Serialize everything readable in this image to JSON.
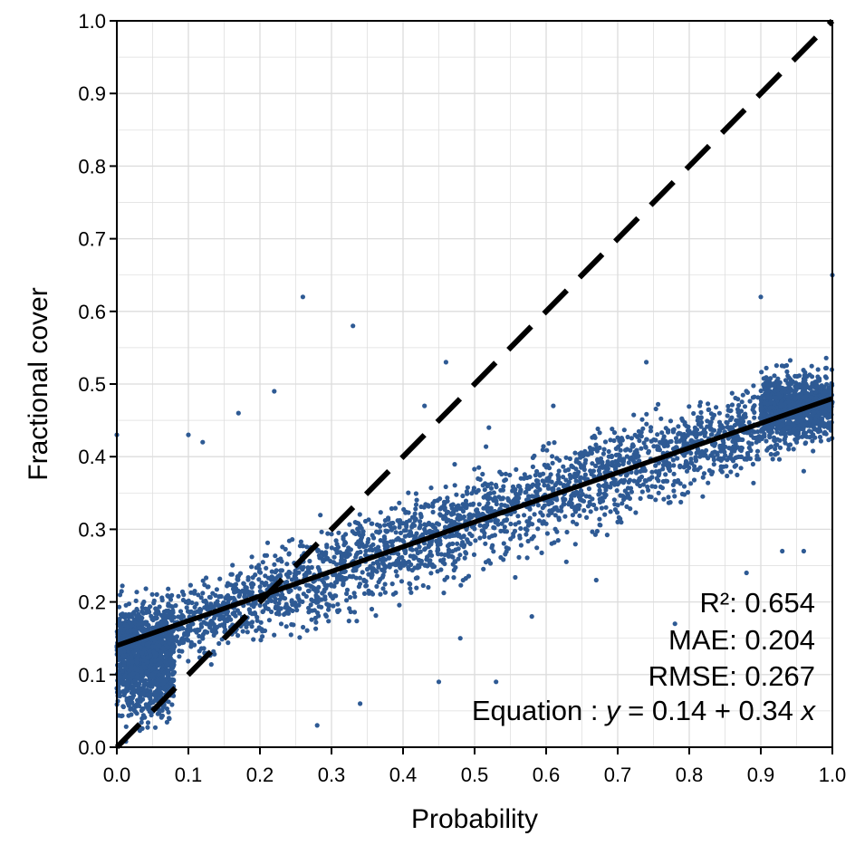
{
  "chart_data": {
    "type": "scatter",
    "title": "",
    "xlabel": "Probability",
    "ylabel": "Fractional cover",
    "xlim": [
      0.0,
      1.0
    ],
    "ylim": [
      0.0,
      1.0
    ],
    "xticks": [
      "0.0",
      "0.1",
      "0.2",
      "0.3",
      "0.4",
      "0.5",
      "0.6",
      "0.7",
      "0.8",
      "0.9",
      "1.0"
    ],
    "yticks": [
      "0.0",
      "0.1",
      "0.2",
      "0.3",
      "0.4",
      "0.5",
      "0.6",
      "0.7",
      "0.8",
      "0.9",
      "1.0"
    ],
    "grid": true,
    "point_color": "#2E5A94",
    "reference_line": {
      "from": [
        0.0,
        0.0
      ],
      "to": [
        1.0,
        1.0
      ],
      "style": "dashed",
      "color": "#000000"
    },
    "fit_line": {
      "intercept": 0.14,
      "slope": 0.34,
      "style": "solid",
      "color": "#000000"
    },
    "annotations": {
      "r2": "R²: 0.654",
      "mae": "MAE: 0.204",
      "rmse": "RMSE: 0.267",
      "equation_prefix": "Equation",
      "equation_colon": " : ",
      "equation_y": "y",
      "equation_mid": " = 0.14 + 0.34 ",
      "equation_x": "x"
    },
    "series": [
      {
        "points": [
          [
            0.26,
            0.62
          ],
          [
            0.33,
            0.58
          ],
          [
            0.9,
            0.62
          ],
          [
            1.0,
            0.65
          ],
          [
            0.0,
            0.43
          ],
          [
            0.46,
            0.53
          ],
          [
            0.74,
            0.53
          ],
          [
            0.61,
            0.47
          ],
          [
            0.17,
            0.46
          ],
          [
            0.1,
            0.43
          ],
          [
            0.52,
            0.44
          ],
          [
            0.45,
            0.09
          ],
          [
            0.53,
            0.09
          ],
          [
            0.28,
            0.03
          ],
          [
            0.43,
            0.47
          ],
          [
            0.78,
            0.17
          ],
          [
            0.96,
            0.27
          ],
          [
            0.96,
            0.38
          ],
          [
            0.86,
            0.44
          ],
          [
            0.22,
            0.49
          ],
          [
            0.67,
            0.23
          ],
          [
            0.88,
            0.24
          ],
          [
            0.93,
            0.27
          ],
          [
            0.7,
            0.31
          ],
          [
            0.95,
            0.46
          ],
          [
            0.34,
            0.06
          ],
          [
            0.48,
            0.15
          ],
          [
            0.58,
            0.18
          ],
          [
            0.12,
            0.42
          ],
          [
            0.98,
            0.52
          ]
        ]
      }
    ]
  }
}
